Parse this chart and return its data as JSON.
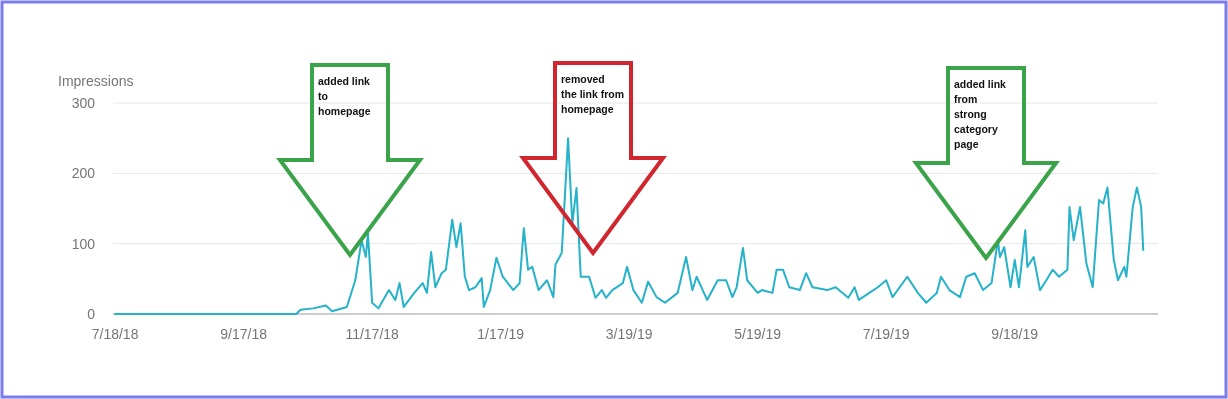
{
  "chart_data": {
    "type": "line",
    "ylabel": "Impressions",
    "xlim": [
      "2018-07-17",
      "2019-11-25"
    ],
    "xticks": [
      {
        "value": "2018-07-18",
        "label": "7/18/18"
      },
      {
        "value": "2018-09-17",
        "label": "9/17/18"
      },
      {
        "value": "2018-11-17",
        "label": "11/17/18"
      },
      {
        "value": "2019-01-17",
        "label": "1/17/19"
      },
      {
        "value": "2019-03-19",
        "label": "3/19/19"
      },
      {
        "value": "2019-05-19",
        "label": "5/19/19"
      },
      {
        "value": "2019-07-19",
        "label": "7/19/19"
      },
      {
        "value": "2019-09-18",
        "label": "9/18/19"
      }
    ],
    "ylim": [
      0,
      300
    ],
    "yticks": [
      0,
      100,
      200,
      300
    ],
    "grid": "y",
    "marker": "none",
    "line_style": "solid",
    "series": [
      {
        "color": "#26b3c9",
        "x": [
          "2018-07-18",
          "2018-10-12",
          "2018-10-14",
          "2018-10-20",
          "2018-10-26",
          "2018-10-29",
          "2018-11-05",
          "2018-11-09",
          "2018-11-12",
          "2018-11-14",
          "2018-11-15",
          "2018-11-17",
          "2018-11-20",
          "2018-11-25",
          "2018-11-28",
          "2018-11-30",
          "2018-12-02",
          "2018-12-07",
          "2018-12-11",
          "2018-12-13",
          "2018-12-15",
          "2018-12-17",
          "2018-12-20",
          "2018-12-22",
          "2018-12-25",
          "2018-12-27",
          "2018-12-29",
          "2018-12-31",
          "2019-01-02",
          "2019-01-05",
          "2019-01-08",
          "2019-01-09",
          "2019-01-12",
          "2019-01-15",
          "2019-01-18",
          "2019-01-23",
          "2019-01-26",
          "2019-01-28",
          "2019-01-30",
          "2019-02-01",
          "2019-02-04",
          "2019-02-08",
          "2019-02-11",
          "2019-02-12",
          "2019-02-15",
          "2019-02-18",
          "2019-02-20",
          "2019-02-22",
          "2019-02-24",
          "2019-02-28",
          "2019-03-03",
          "2019-03-06",
          "2019-03-08",
          "2019-03-11",
          "2019-03-16",
          "2019-03-18",
          "2019-03-21",
          "2019-03-25",
          "2019-03-28",
          "2019-04-01",
          "2019-04-05",
          "2019-04-11",
          "2019-04-15",
          "2019-04-18",
          "2019-04-20",
          "2019-04-25",
          "2019-04-30",
          "2019-05-04",
          "2019-05-07",
          "2019-05-09",
          "2019-05-12",
          "2019-05-14",
          "2019-05-19",
          "2019-05-21",
          "2019-05-26",
          "2019-05-28",
          "2019-05-31",
          "2019-06-03",
          "2019-06-08",
          "2019-06-11",
          "2019-06-14",
          "2019-06-21",
          "2019-06-25",
          "2019-07-01",
          "2019-07-04",
          "2019-07-06",
          "2019-07-11",
          "2019-07-15",
          "2019-07-19",
          "2019-07-22",
          "2019-07-29",
          "2019-08-03",
          "2019-08-07",
          "2019-08-12",
          "2019-08-14",
          "2019-08-18",
          "2019-08-23",
          "2019-08-26",
          "2019-08-30",
          "2019-09-03",
          "2019-09-07",
          "2019-09-10",
          "2019-09-11",
          "2019-09-13",
          "2019-09-16",
          "2019-09-18",
          "2019-09-20",
          "2019-09-23",
          "2019-09-24",
          "2019-09-27",
          "2019-09-30",
          "2019-10-03",
          "2019-10-06",
          "2019-10-09",
          "2019-10-13",
          "2019-10-14",
          "2019-10-16",
          "2019-10-19",
          "2019-10-22",
          "2019-10-25",
          "2019-10-28",
          "2019-10-30",
          "2019-11-01",
          "2019-11-04",
          "2019-11-06",
          "2019-11-09",
          "2019-11-10",
          "2019-11-13",
          "2019-11-15",
          "2019-11-17",
          "2019-11-18"
        ],
        "values": [
          0,
          0,
          6,
          8,
          12,
          4,
          10,
          48,
          105,
          81,
          115,
          16,
          8,
          34,
          20,
          44,
          10,
          30,
          44,
          30,
          88,
          38,
          58,
          63,
          134,
          95,
          129,
          53,
          34,
          38,
          51,
          10,
          34,
          80,
          53,
          34,
          44,
          122,
          63,
          67,
          34,
          48,
          24,
          70,
          87,
          250,
          129,
          179,
          53,
          53,
          23,
          34,
          23,
          34,
          44,
          67,
          34,
          16,
          46,
          24,
          16,
          30,
          81,
          34,
          53,
          20,
          48,
          48,
          24,
          38,
          94,
          48,
          30,
          34,
          30,
          63,
          63,
          38,
          34,
          58,
          38,
          34,
          38,
          23,
          38,
          20,
          30,
          38,
          48,
          24,
          53,
          30,
          16,
          30,
          53,
          34,
          24,
          53,
          58,
          34,
          44,
          105,
          81,
          95,
          38,
          77,
          38,
          119,
          67,
          81,
          34,
          48,
          63,
          53,
          63,
          152,
          105,
          152,
          72,
          38,
          162,
          157,
          180,
          77,
          48,
          67,
          53,
          152,
          180,
          152,
          91
        ]
      }
    ],
    "annotations": [
      "added link\nto\nhomepage",
      "removed\nthe link from\nhomepage",
      "added link\nfrom\nstrong\ncategory\npage"
    ]
  }
}
